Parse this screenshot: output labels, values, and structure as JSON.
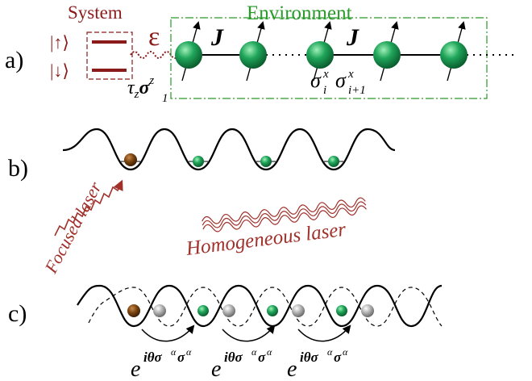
{
  "colors": {
    "system_red": "#8b1a1a",
    "environment_green": "#2a9a2a",
    "spin_green": "#1fa55a",
    "spin_dark": "#0c6b35",
    "brown_atom": "#7a4410",
    "gray_atom": "#9a9a9a",
    "laser_red": "#a0302a"
  },
  "panel_a": {
    "label": "a)",
    "system_title": "System",
    "environment_title": "Environment",
    "ket_up": "|↑⟩",
    "ket_down": "|↓⟩",
    "epsilon": "ε",
    "coupling_tau": "τ",
    "coupling_tau_sub": "z",
    "coupling_sigma": "σ",
    "coupling_sigma_sup": "z",
    "coupling_sigma_sub": "1",
    "J1": "J",
    "J2": "J",
    "op_sigma": "σ",
    "op_sup": "x",
    "op_sub_i": "i",
    "op_sub_ip1": "i+1"
  },
  "panel_b": {
    "label": "b)",
    "focused_laser": "Focused laser",
    "homogeneous_laser": "Homogeneous laser"
  },
  "panel_c": {
    "label": "c)",
    "exp_base": "e",
    "exp_power": "iθσ",
    "exp_alpha": "α",
    "exp_sigma": "σ"
  }
}
